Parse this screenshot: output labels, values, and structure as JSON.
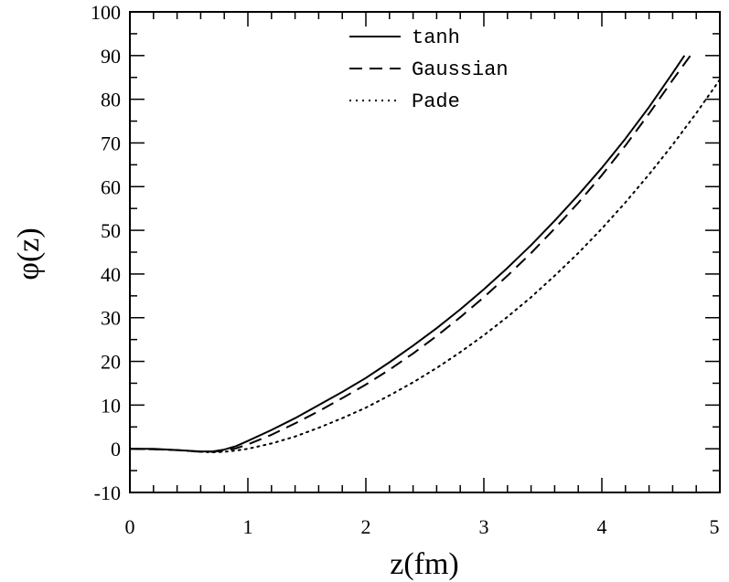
{
  "chart_data": {
    "type": "line",
    "title": "",
    "xlabel": "z(fm)",
    "ylabel": "φ(z)",
    "xlim": [
      0,
      5
    ],
    "ylim": [
      -10,
      100
    ],
    "xticks": [
      0,
      1,
      2,
      3,
      4,
      5
    ],
    "yticks": [
      -10,
      0,
      10,
      20,
      30,
      40,
      50,
      60,
      70,
      80,
      90,
      100
    ],
    "grid": false,
    "legend_position": "top-center",
    "series": [
      {
        "name": "tanh",
        "style": "solid",
        "x": [
          0,
          0.2,
          0.4,
          0.6,
          0.7,
          0.8,
          0.9,
          1.0,
          1.2,
          1.4,
          1.6,
          1.8,
          2.0,
          2.2,
          2.4,
          2.6,
          2.8,
          3.0,
          3.2,
          3.4,
          3.6,
          3.8,
          4.0,
          4.2,
          4.4,
          4.6,
          4.7
        ],
        "y": [
          0,
          0,
          -0.3,
          -0.6,
          -0.6,
          -0.2,
          0.6,
          1.8,
          4.3,
          7.0,
          10.0,
          13.0,
          16.2,
          19.8,
          23.6,
          27.6,
          31.9,
          36.5,
          41.4,
          46.6,
          52.2,
          58.1,
          64.3,
          71.0,
          78.2,
          86.0,
          90.0
        ]
      },
      {
        "name": "Gaussian",
        "style": "dashed",
        "x": [
          0,
          0.2,
          0.4,
          0.6,
          0.7,
          0.8,
          0.9,
          1.0,
          1.2,
          1.4,
          1.6,
          1.8,
          2.0,
          2.2,
          2.4,
          2.6,
          2.8,
          3.0,
          3.2,
          3.4,
          3.6,
          3.8,
          4.0,
          4.2,
          4.4,
          4.6,
          4.75
        ],
        "y": [
          0,
          -0.1,
          -0.3,
          -0.7,
          -0.7,
          -0.4,
          0.1,
          1.0,
          3.2,
          5.8,
          8.6,
          11.6,
          14.7,
          18.1,
          21.8,
          25.8,
          30.1,
          34.7,
          39.6,
          44.8,
          50.4,
          56.3,
          62.6,
          69.4,
          76.7,
          84.4,
          90.0
        ]
      },
      {
        "name": "Pade",
        "style": "dotted",
        "x": [
          0,
          0.2,
          0.4,
          0.6,
          0.7,
          0.8,
          0.9,
          1.0,
          1.2,
          1.4,
          1.6,
          1.8,
          2.0,
          2.2,
          2.4,
          2.6,
          2.8,
          3.0,
          3.2,
          3.4,
          3.6,
          3.8,
          4.0,
          4.2,
          4.4,
          4.6,
          4.8,
          5.0
        ],
        "y": [
          0,
          -0.1,
          -0.3,
          -0.7,
          -0.8,
          -0.7,
          -0.4,
          0.0,
          1.2,
          2.8,
          4.8,
          7.0,
          9.4,
          12.2,
          15.2,
          18.5,
          22.1,
          26.0,
          30.2,
          34.7,
          39.6,
          44.8,
          50.4,
          56.4,
          62.8,
          69.6,
          76.8,
          84.5
        ]
      }
    ]
  }
}
